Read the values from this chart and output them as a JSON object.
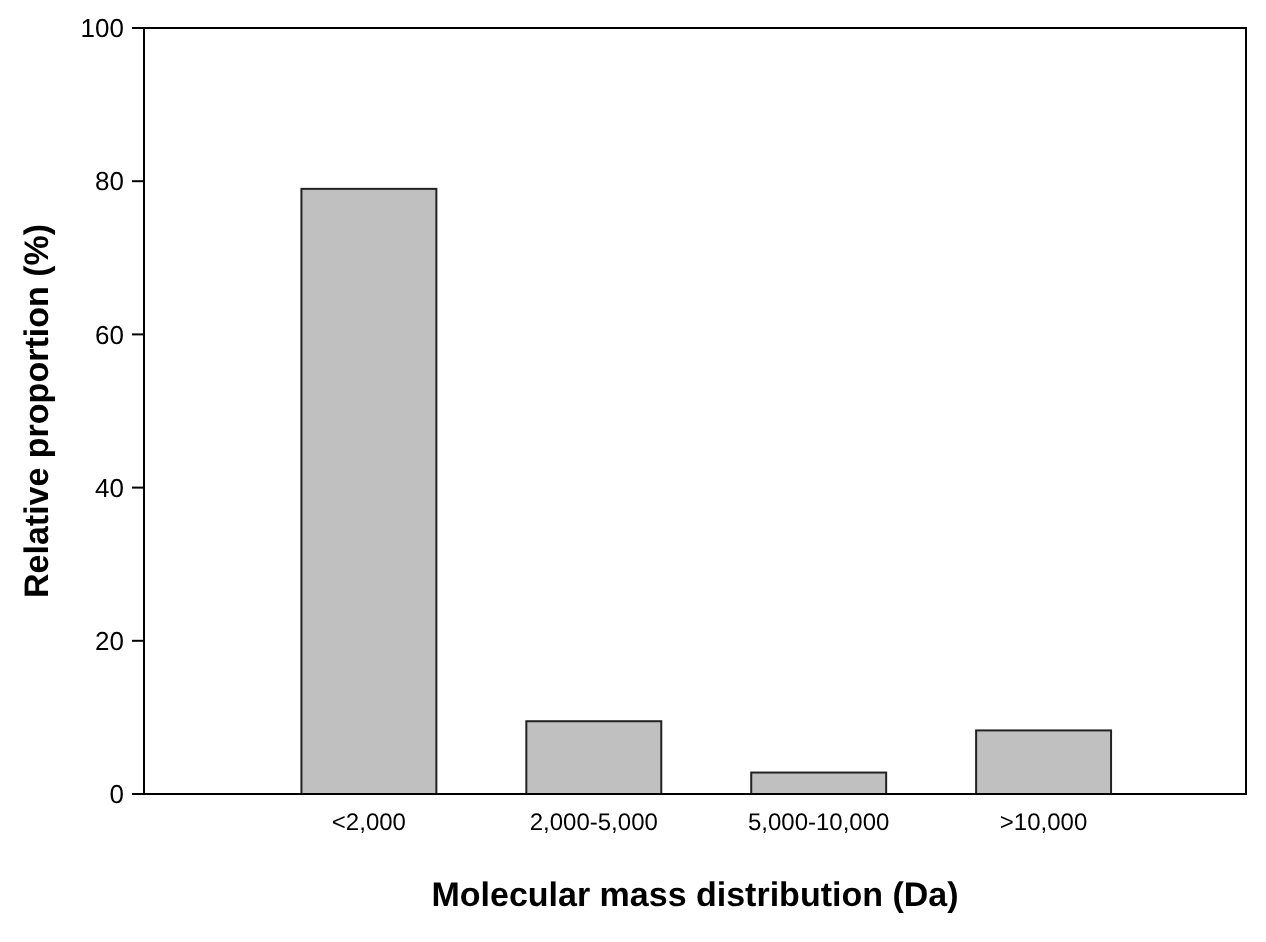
{
  "chart_data": {
    "type": "bar",
    "xlabel": "Molecular mass distribution (Da)",
    "ylabel": "Relative proportion (%)",
    "categories": [
      "<2,000",
      "2,000-5,000",
      "5,000-10,000",
      ">10,000"
    ],
    "values": [
      79,
      9.5,
      2.8,
      8.3
    ],
    "color": "#c0c0c0",
    "ylim": [
      0,
      100
    ],
    "yticks": [
      0,
      20,
      40,
      60,
      80,
      100
    ],
    "grid": false
  }
}
